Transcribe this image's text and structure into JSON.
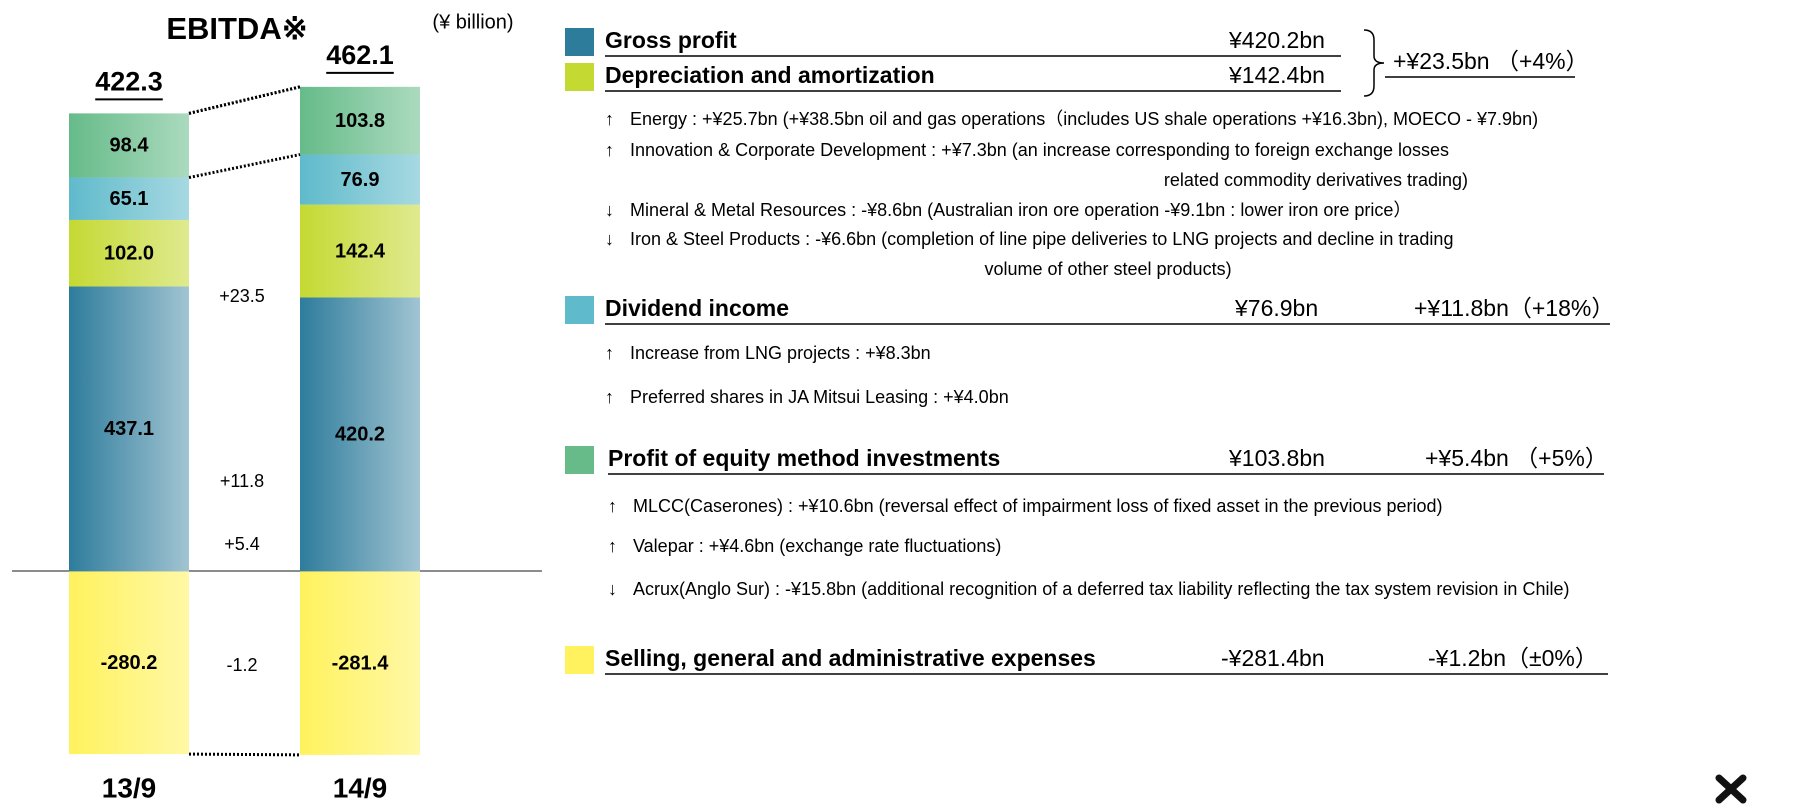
{
  "chart_data": {
    "type": "bar",
    "stacked": true,
    "title": "EBITDA※",
    "unit": "(¥ billion)",
    "categories": [
      "13/9",
      "14/9"
    ],
    "totals": [
      422.3,
      462.1
    ],
    "changes": [
      23.5,
      11.8,
      5.4,
      -1.2
    ],
    "change_labels": [
      "+23.5",
      "+11.8",
      "+5.4",
      "-1.2"
    ],
    "ylim": [
      -300,
      740
    ],
    "series": [
      {
        "name": "Gross profit",
        "color": "#2e7c9c",
        "values": [
          437.1,
          420.2
        ],
        "value_labels": [
          "437.1",
          "420.2"
        ]
      },
      {
        "name": "Depreciation and amortization",
        "color": "#c5d933",
        "values": [
          102.0,
          142.4
        ],
        "value_labels": [
          "102.0",
          "142.4"
        ]
      },
      {
        "name": "Dividend income",
        "color": "#5fbacb",
        "values": [
          65.1,
          76.9
        ],
        "value_labels": [
          "65.1",
          "76.9"
        ]
      },
      {
        "name": "Profit of equity method investments",
        "color": "#66bb89",
        "values": [
          98.4,
          103.8
        ],
        "value_labels": [
          "98.4",
          "103.8"
        ]
      },
      {
        "name": "Selling, general and administrative expenses",
        "color": "#fff25e",
        "values": [
          -280.2,
          -281.4
        ],
        "value_labels": [
          "-280.2",
          "-281.4"
        ]
      }
    ]
  },
  "details": {
    "sections": [
      {
        "rows": [
          {
            "name": "Gross profit",
            "value": "¥420.2bn"
          },
          {
            "name": "Depreciation and amortization",
            "value": "¥142.4bn"
          }
        ],
        "change": "+¥23.5bn （+4%）",
        "items": [
          {
            "arrow": "↑",
            "lines": [
              "Energy : +¥25.7bn (+¥38.5bn oil and gas  operations（includes  US shale operations +¥16.3bn), MOECO - ¥7.9bn)"
            ]
          },
          {
            "arrow": "↑",
            "lines": [
              "Innovation & Corporate Development  : +¥7.3bn (an increase corresponding to foreign exchange losses",
              "related commodity derivatives trading)"
            ]
          },
          {
            "arrow": "↓",
            "lines": [
              "Mineral & Metal Resources : -¥8.6bn (Australian iron ore operation -¥9.1bn : lower iron ore price）"
            ]
          },
          {
            "arrow": "↓",
            "lines": [
              "Iron & Steel Products  : -¥6.6bn (completion of line pipe deliveries to LNG projects and decline in trading",
              "volume of other steel products)"
            ]
          }
        ]
      },
      {
        "rows": [
          {
            "name": "Dividend income",
            "value": "¥76.9bn"
          }
        ],
        "change": "+¥11.8bn（+18%）",
        "items": [
          {
            "arrow": "↑",
            "lines": [
              "Increase  from LNG projects  : +¥8.3bn"
            ]
          },
          {
            "arrow": "↑",
            "lines": [
              "Preferred shares in JA Mitsui Leasing : +¥4.0bn"
            ]
          }
        ]
      },
      {
        "rows": [
          {
            "name": "Profit of equity method investments",
            "value": "¥103.8bn"
          }
        ],
        "change": "+¥5.4bn （+5%）",
        "items": [
          {
            "arrow": "↑",
            "lines": [
              "MLCC(Caserones) : +¥10.6bn  (reversal effect of impairment loss of fixed asset in the previous period)"
            ]
          },
          {
            "arrow": "↑",
            "lines": [
              "Valepar : +¥4.6bn (exchange rate fluctuations)"
            ]
          },
          {
            "arrow": "↓",
            "lines": [
              "Acrux(Anglo Sur) :  -¥15.8bn  (additional recognition of a deferred tax liability reflecting the tax system revision in Chile)"
            ]
          }
        ]
      },
      {
        "rows": [
          {
            "name": "Selling, general and administrative expenses",
            "value": "-¥281.4bn"
          }
        ],
        "change": "-¥1.2bn（±0%）",
        "items": []
      }
    ]
  }
}
